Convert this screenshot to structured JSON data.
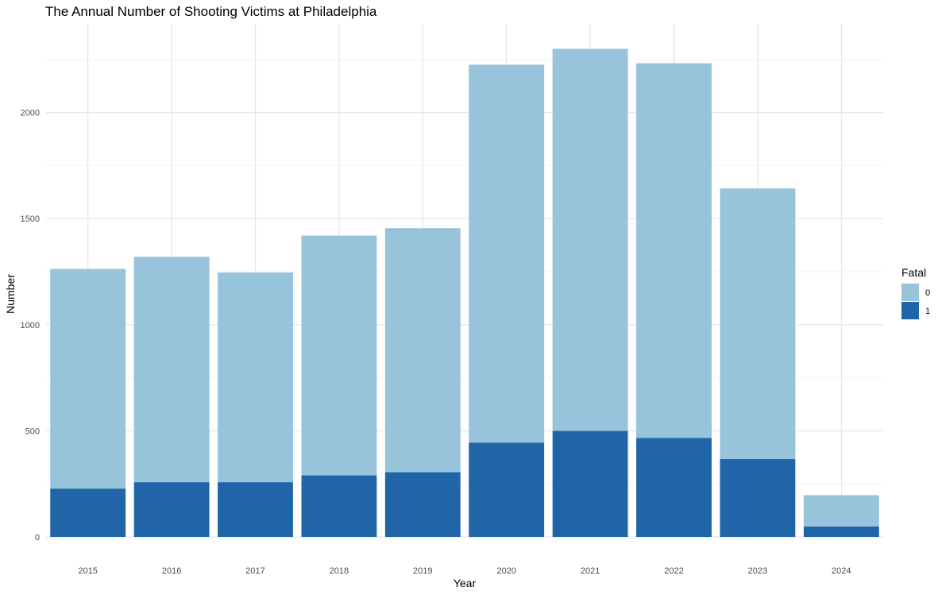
{
  "chart_data": {
    "type": "bar",
    "stacked": true,
    "title": "The Annual Number of Shooting Victims at Philadelphia",
    "xlabel": "Year",
    "ylabel": "Number",
    "categories": [
      "2015",
      "2016",
      "2017",
      "2018",
      "2019",
      "2020",
      "2021",
      "2022",
      "2023",
      "2024"
    ],
    "series": [
      {
        "name": "0",
        "color": "#97c3db",
        "values": [
          1035,
          1062,
          988,
          1130,
          1150,
          1780,
          1800,
          1765,
          1275,
          147
        ]
      },
      {
        "name": "1",
        "color": "#1f65a8",
        "values": [
          228,
          258,
          258,
          290,
          305,
          445,
          500,
          467,
          367,
          50
        ]
      }
    ],
    "ylim": [
      0,
      2300
    ],
    "yticks": [
      0,
      500,
      1000,
      1500,
      2000
    ],
    "grid": true,
    "legend": {
      "title": "Fatal",
      "position": "right"
    }
  }
}
